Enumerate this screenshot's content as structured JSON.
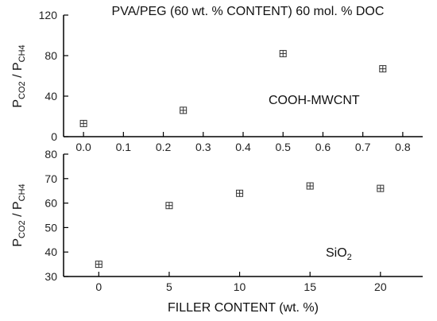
{
  "colors": {
    "axis": "#000000",
    "marker": "#333333",
    "text": "#111111"
  },
  "chart_data": [
    {
      "type": "scatter",
      "title": "PVA/PEG (60 wt. % CONTENT) 60 mol. % DOC",
      "annotation": "COOH-MWCNT",
      "ylabel": {
        "main": "P",
        "sub1": "CO2",
        "mid": " / P",
        "sub2": "CH4"
      },
      "xlim": [
        -0.05,
        0.85
      ],
      "ylim": [
        0,
        120
      ],
      "xticks": [
        0.0,
        0.1,
        0.2,
        0.3,
        0.4,
        0.5,
        0.6,
        0.7,
        0.8
      ],
      "xtick_labels": [
        "0.0",
        "0.1",
        "0.2",
        "0.3",
        "0.4",
        "0.5",
        "0.6",
        "0.7",
        "0.8"
      ],
      "yticks": [
        0,
        40,
        80,
        120
      ],
      "ytick_labels": [
        "0",
        "40",
        "80",
        "120"
      ],
      "points": [
        {
          "x": 0.0,
          "y": 13
        },
        {
          "x": 0.25,
          "y": 26
        },
        {
          "x": 0.5,
          "y": 82
        },
        {
          "x": 0.75,
          "y": 67
        }
      ]
    },
    {
      "type": "scatter",
      "annotation": {
        "main": "SiO",
        "sub": "2"
      },
      "xlabel": "FILLER  CONTENT   (wt. %)",
      "ylabel": {
        "main": "P",
        "sub1": "CO2",
        "mid": " / P",
        "sub2": "CH4"
      },
      "xlim": [
        -2.5,
        23
      ],
      "ylim": [
        30,
        80
      ],
      "xticks": [
        0,
        5,
        10,
        15,
        20
      ],
      "xtick_labels": [
        "0",
        "5",
        "10",
        "15",
        "20"
      ],
      "yticks": [
        30,
        40,
        50,
        60,
        70,
        80
      ],
      "ytick_labels": [
        "30",
        "40",
        "50",
        "60",
        "70",
        "80"
      ],
      "points": [
        {
          "x": 0,
          "y": 35
        },
        {
          "x": 5,
          "y": 59
        },
        {
          "x": 10,
          "y": 64
        },
        {
          "x": 15,
          "y": 67
        },
        {
          "x": 20,
          "y": 66
        }
      ]
    }
  ]
}
